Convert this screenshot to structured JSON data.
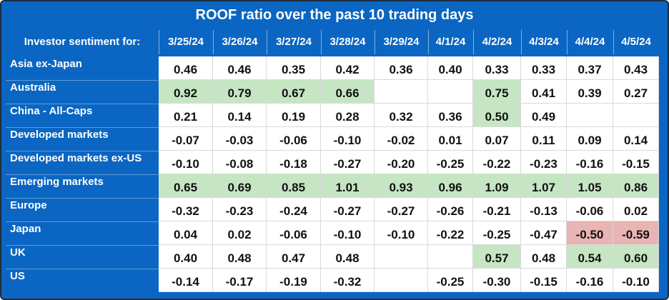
{
  "chart_data": {
    "type": "table",
    "title": "ROOF ratio over the past 10 trading days",
    "row_header": "Investor sentiment for:",
    "columns": [
      "3/25/24",
      "3/26/24",
      "3/27/24",
      "3/28/24",
      "3/29/24",
      "4/1/24",
      "4/2/24",
      "4/3/24",
      "4/4/24",
      "4/5/24"
    ],
    "rows": [
      {
        "label": "Asia ex-Japan",
        "values": [
          "0.46",
          "0.46",
          "0.35",
          "0.42",
          "0.36",
          "0.40",
          "0.33",
          "0.33",
          "0.37",
          "0.43"
        ],
        "highlight": [
          "",
          "",
          "",
          "",
          "",
          "",
          "",
          "",
          "",
          ""
        ]
      },
      {
        "label": "Australia",
        "values": [
          "0.92",
          "0.79",
          "0.67",
          "0.66",
          "",
          "",
          "0.75",
          "0.41",
          "0.39",
          "0.27"
        ],
        "highlight": [
          "pos",
          "pos",
          "pos",
          "pos",
          "",
          "",
          "pos",
          "",
          "",
          ""
        ]
      },
      {
        "label": "China - All-Caps",
        "values": [
          "0.21",
          "0.14",
          "0.19",
          "0.28",
          "0.32",
          "0.36",
          "0.50",
          "0.49",
          "",
          ""
        ],
        "highlight": [
          "",
          "",
          "",
          "",
          "",
          "",
          "pos",
          "",
          "",
          ""
        ]
      },
      {
        "label": "Developed markets",
        "values": [
          "-0.07",
          "-0.03",
          "-0.06",
          "-0.10",
          "-0.02",
          "0.01",
          "0.07",
          "0.11",
          "0.09",
          "0.14"
        ],
        "highlight": [
          "",
          "",
          "",
          "",
          "",
          "",
          "",
          "",
          "",
          ""
        ]
      },
      {
        "label": "Developed markets ex-US",
        "values": [
          "-0.10",
          "-0.08",
          "-0.18",
          "-0.27",
          "-0.20",
          "-0.25",
          "-0.22",
          "-0.23",
          "-0.16",
          "-0.15"
        ],
        "highlight": [
          "",
          "",
          "",
          "",
          "",
          "",
          "",
          "",
          "",
          ""
        ]
      },
      {
        "label": "Emerging markets",
        "values": [
          "0.65",
          "0.69",
          "0.85",
          "1.01",
          "0.93",
          "0.96",
          "1.09",
          "1.07",
          "1.05",
          "0.86"
        ],
        "highlight": [
          "pos",
          "pos",
          "pos",
          "pos",
          "pos",
          "pos",
          "pos",
          "pos",
          "pos",
          "pos"
        ]
      },
      {
        "label": "Europe",
        "values": [
          "-0.32",
          "-0.23",
          "-0.24",
          "-0.27",
          "-0.27",
          "-0.26",
          "-0.21",
          "-0.13",
          "-0.06",
          "0.02"
        ],
        "highlight": [
          "",
          "",
          "",
          "",
          "",
          "",
          "",
          "",
          "",
          ""
        ]
      },
      {
        "label": "Japan",
        "values": [
          "0.04",
          "0.02",
          "-0.06",
          "-0.10",
          "-0.10",
          "-0.22",
          "-0.25",
          "-0.47",
          "-0.50",
          "-0.59"
        ],
        "highlight": [
          "",
          "",
          "",
          "",
          "",
          "",
          "",
          "",
          "neg",
          "neg"
        ]
      },
      {
        "label": "UK",
        "values": [
          "0.40",
          "0.48",
          "0.47",
          "0.48",
          "",
          "",
          "0.57",
          "0.48",
          "0.54",
          "0.60"
        ],
        "highlight": [
          "",
          "",
          "",
          "",
          "",
          "",
          "pos",
          "",
          "pos",
          "pos"
        ]
      },
      {
        "label": "US",
        "values": [
          "-0.14",
          "-0.17",
          "-0.19",
          "-0.32",
          "",
          "-0.25",
          "-0.30",
          "-0.15",
          "-0.16",
          "-0.10"
        ],
        "highlight": [
          "",
          "",
          "",
          "",
          "",
          "",
          "",
          "",
          "",
          ""
        ]
      }
    ]
  },
  "colors": {
    "header_background": "#0a66c2",
    "positive_highlight": "#c6e6c3",
    "negative_highlight": "#e8b4b4"
  }
}
